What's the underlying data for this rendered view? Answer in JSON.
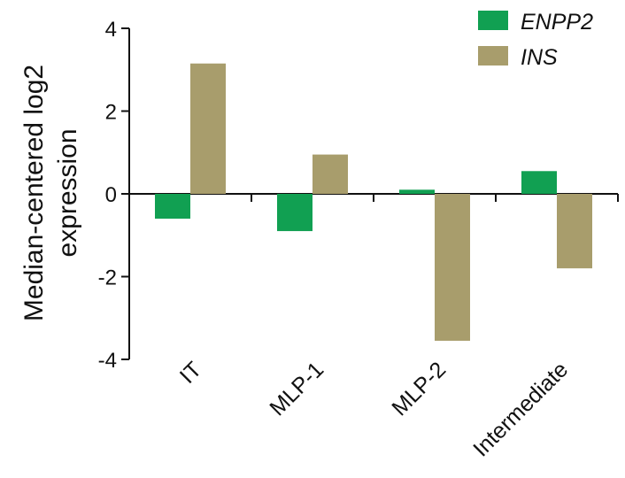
{
  "chart_data": {
    "type": "bar",
    "categories": [
      "IT",
      "MLP-1",
      "MLP-2",
      "Intermediate"
    ],
    "series": [
      {
        "name": "ENPP2",
        "color": "#11a052",
        "values": [
          -0.6,
          -0.9,
          0.1,
          0.55
        ]
      },
      {
        "name": "INS",
        "color": "#a89d6c",
        "values": [
          3.15,
          0.95,
          -3.55,
          -1.8
        ]
      }
    ],
    "ylabel_lines": [
      "Median-centered log2",
      "expression"
    ],
    "xlabel": "",
    "ylim": [
      -4,
      4
    ],
    "yticks": [
      4,
      2,
      0,
      -2,
      -4
    ],
    "ytick_labels": [
      "4",
      "2",
      "0",
      "-2",
      "-4"
    ],
    "legend_position": "top-right",
    "grid": false
  }
}
